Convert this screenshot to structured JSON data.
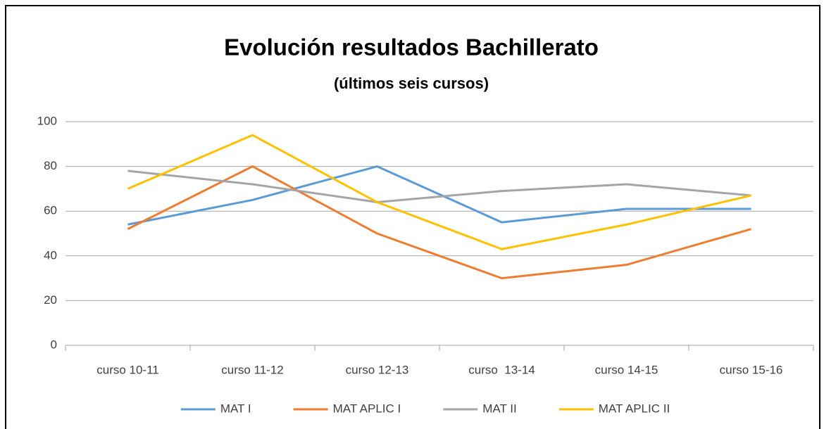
{
  "chart_data": {
    "type": "line",
    "title": "Evolución resultados Bachillerato",
    "subtitle": "(últimos seis cursos)",
    "categories": [
      "curso 10-11",
      "curso 11-12",
      "curso 12-13",
      "curso  13-14",
      "curso 14-15",
      "curso 15-16"
    ],
    "series": [
      {
        "name": "MAT I",
        "color": "#5b9bd5",
        "values": [
          54,
          65,
          80,
          55,
          61,
          61
        ]
      },
      {
        "name": "MAT APLIC I",
        "color": "#ed7d31",
        "values": [
          52,
          80,
          50,
          30,
          36,
          52
        ]
      },
      {
        "name": "MAT II",
        "color": "#a5a5a5",
        "values": [
          78,
          72,
          64,
          69,
          72,
          67
        ]
      },
      {
        "name": "MAT APLIC II",
        "color": "#ffc000",
        "values": [
          70,
          94,
          64,
          43,
          54,
          67
        ]
      }
    ],
    "ylim": [
      0,
      100
    ],
    "yticks": [
      0,
      20,
      40,
      60,
      80,
      100
    ],
    "grid": true,
    "legend": "bottom"
  }
}
